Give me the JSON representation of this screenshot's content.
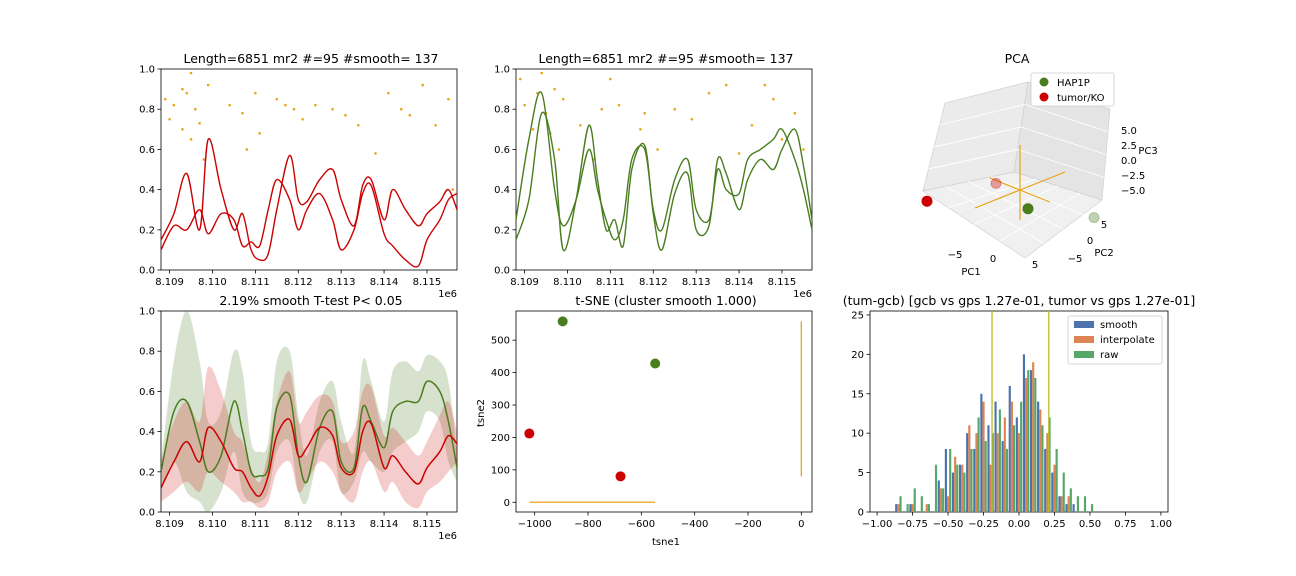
{
  "colors": {
    "red": "#cc0000",
    "green": "#4a7d1f",
    "orange": "#e8a417",
    "blue": "#4c72b0",
    "hist_orange": "#dd8452",
    "hist_green": "#55a868",
    "vline": "#bcbd22"
  },
  "chart_data": [
    {
      "id": "panel1",
      "type": "line",
      "title": "Length=6851 mr2 #=95 #smooth= 137",
      "xlim": [
        8.1088,
        8.1157
      ],
      "ylim": [
        0,
        1
      ],
      "x_offset_label": "1e6",
      "xticks": [
        "8.109",
        "8.110",
        "8.111",
        "8.112",
        "8.113",
        "8.114",
        "8.115"
      ],
      "xtick_values": [
        8.109,
        8.11,
        8.111,
        8.112,
        8.113,
        8.114,
        8.115
      ],
      "yticks": [
        "0.0",
        "0.2",
        "0.4",
        "0.6",
        "0.8",
        "1.0"
      ],
      "series": [
        {
          "color": "red",
          "x": [
            8.1088,
            8.1091,
            8.1094,
            8.1097,
            8.1099,
            8.1102,
            8.1105,
            8.1107,
            8.1109,
            8.1111,
            8.1113,
            8.1115,
            8.1118,
            8.112,
            8.1122,
            8.1125,
            8.1128,
            8.113,
            8.1133,
            8.1135,
            8.1137,
            8.114,
            8.1142,
            8.1145,
            8.1148,
            8.115,
            8.1153,
            8.1155,
            8.1157
          ],
          "y": [
            0.15,
            0.28,
            0.48,
            0.2,
            0.65,
            0.4,
            0.2,
            0.28,
            0.1,
            0.05,
            0.08,
            0.3,
            0.57,
            0.35,
            0.34,
            0.45,
            0.5,
            0.35,
            0.22,
            0.42,
            0.45,
            0.25,
            0.4,
            0.3,
            0.22,
            0.28,
            0.34,
            0.4,
            0.3
          ]
        },
        {
          "color": "red",
          "x": [
            8.1088,
            8.1091,
            8.1094,
            8.1097,
            8.1099,
            8.1102,
            8.1105,
            8.1107,
            8.1109,
            8.1111,
            8.1113,
            8.1115,
            8.1118,
            8.112,
            8.1122,
            8.1125,
            8.1128,
            8.113,
            8.1133,
            8.1135,
            8.1137,
            8.114,
            8.1142,
            8.1145,
            8.1148,
            8.115,
            8.1153,
            8.1155,
            8.1157
          ],
          "y": [
            0.1,
            0.22,
            0.2,
            0.3,
            0.18,
            0.28,
            0.25,
            0.12,
            0.14,
            0.12,
            0.3,
            0.45,
            0.35,
            0.2,
            0.3,
            0.38,
            0.25,
            0.1,
            0.2,
            0.38,
            0.42,
            0.18,
            0.12,
            0.05,
            0.02,
            0.15,
            0.25,
            0.35,
            0.38
          ]
        }
      ],
      "scatter": {
        "color": "orange",
        "x": [
          8.1089,
          8.109,
          8.1091,
          8.1093,
          8.1093,
          8.1094,
          8.1095,
          8.1095,
          8.1096,
          8.1097,
          8.1098,
          8.1099,
          8.1104,
          8.1107,
          8.1108,
          8.111,
          8.1111,
          8.1115,
          8.1117,
          8.1119,
          8.1121,
          8.1124,
          8.1128,
          8.1131,
          8.1134,
          8.1138,
          8.1141,
          8.1144,
          8.1146,
          8.1149,
          8.1152,
          8.1155,
          8.1156
        ],
        "y": [
          0.85,
          0.75,
          0.82,
          0.9,
          0.7,
          0.88,
          0.65,
          0.98,
          0.8,
          0.73,
          0.55,
          0.92,
          0.82,
          0.78,
          0.6,
          0.88,
          0.68,
          0.85,
          0.82,
          0.8,
          0.75,
          0.82,
          0.8,
          0.77,
          0.72,
          0.58,
          0.88,
          0.8,
          0.77,
          0.92,
          0.72,
          0.85,
          0.4
        ]
      }
    },
    {
      "id": "panel2",
      "type": "line",
      "title": "Length=6851 mr2 #=95 #smooth= 137",
      "xlim": [
        8.1088,
        8.1157
      ],
      "ylim": [
        0,
        1
      ],
      "x_offset_label": "1e6",
      "xticks": [
        "8.109",
        "8.110",
        "8.111",
        "8.112",
        "8.113",
        "8.114",
        "8.115"
      ],
      "xtick_values": [
        8.109,
        8.11,
        8.111,
        8.112,
        8.113,
        8.114,
        8.115
      ],
      "yticks": [
        "0.0",
        "0.2",
        "0.4",
        "0.6",
        "0.8",
        "1.0"
      ],
      "series": [
        {
          "color": "green",
          "x": [
            8.1088,
            8.1091,
            8.1094,
            8.1097,
            8.1099,
            8.1102,
            8.1105,
            8.1107,
            8.1109,
            8.1111,
            8.1113,
            8.1115,
            8.1118,
            8.112,
            8.1122,
            8.1125,
            8.1128,
            8.113,
            8.1133,
            8.1135,
            8.1137,
            8.114,
            8.1142,
            8.1145,
            8.1148,
            8.115,
            8.1153,
            8.1155,
            8.1157
          ],
          "y": [
            0.25,
            0.65,
            0.88,
            0.4,
            0.22,
            0.35,
            0.6,
            0.4,
            0.25,
            0.15,
            0.25,
            0.55,
            0.6,
            0.3,
            0.2,
            0.45,
            0.55,
            0.3,
            0.25,
            0.5,
            0.4,
            0.38,
            0.55,
            0.6,
            0.65,
            0.7,
            0.55,
            0.4,
            0.2
          ]
        },
        {
          "color": "green",
          "x": [
            8.1088,
            8.1091,
            8.1094,
            8.1097,
            8.1099,
            8.1102,
            8.1105,
            8.1107,
            8.1109,
            8.1111,
            8.1113,
            8.1115,
            8.1118,
            8.112,
            8.1122,
            8.1125,
            8.1128,
            8.113,
            8.1133,
            8.1135,
            8.1137,
            8.114,
            8.1142,
            8.1145,
            8.1148,
            8.115,
            8.1153,
            8.1155,
            8.1157
          ],
          "y": [
            0.15,
            0.35,
            0.78,
            0.55,
            0.1,
            0.35,
            0.72,
            0.45,
            0.2,
            0.25,
            0.12,
            0.5,
            0.62,
            0.28,
            0.1,
            0.38,
            0.48,
            0.2,
            0.22,
            0.55,
            0.48,
            0.3,
            0.45,
            0.55,
            0.5,
            0.6,
            0.7,
            0.52,
            0.25
          ]
        }
      ],
      "scatter": {
        "color": "orange",
        "x": [
          8.1089,
          8.109,
          8.1092,
          8.1093,
          8.1094,
          8.1095,
          8.1096,
          8.1097,
          8.1098,
          8.1099,
          8.1103,
          8.1106,
          8.1108,
          8.111,
          8.1112,
          8.1117,
          8.1118,
          8.1121,
          8.1125,
          8.1129,
          8.1133,
          8.1137,
          8.114,
          8.1143,
          8.1146,
          8.1148,
          8.115,
          8.1153,
          8.1155
        ],
        "y": [
          0.95,
          0.82,
          0.7,
          0.88,
          0.98,
          0.78,
          0.68,
          0.9,
          0.6,
          0.85,
          0.72,
          0.55,
          0.8,
          0.95,
          0.82,
          0.7,
          0.78,
          0.6,
          0.8,
          0.75,
          0.88,
          0.92,
          0.58,
          0.72,
          0.92,
          0.85,
          0.65,
          0.78,
          0.6
        ]
      }
    },
    {
      "id": "panel3",
      "type": "scatter",
      "title": "PCA",
      "xlabel": "PC1",
      "ylabel": "PC2",
      "zlabel": "PC3",
      "xticks": [
        "−5",
        "0",
        "5"
      ],
      "yticks": [
        "−5",
        "0",
        "5"
      ],
      "zticks": [
        "5.0",
        "2.5",
        "0.0",
        "−2.5",
        "−5.0"
      ],
      "legend": [
        {
          "label": "HAP1P",
          "color": "green"
        },
        {
          "label": "tumor/KO",
          "color": "red"
        }
      ],
      "points": [
        {
          "group": "tumor/KO",
          "pc1": -7,
          "pc2": -6,
          "pc3": -4
        },
        {
          "group": "tumor/KO",
          "pc1": -6,
          "pc2": 6,
          "pc3": 6
        },
        {
          "group": "HAP1P",
          "pc1": 2,
          "pc2": -2,
          "pc3": -5
        },
        {
          "group": "HAP1P",
          "pc1": 6,
          "pc2": 4,
          "pc3": -4
        }
      ]
    },
    {
      "id": "panel4",
      "type": "area",
      "title": "2.19% smooth T-test P< 0.05",
      "xlim": [
        8.1088,
        8.1157
      ],
      "ylim": [
        0,
        1
      ],
      "x_offset_label": "1e6",
      "xticks": [
        "8.109",
        "8.110",
        "8.111",
        "8.112",
        "8.113",
        "8.114",
        "8.115"
      ],
      "xtick_values": [
        8.109,
        8.11,
        8.111,
        8.112,
        8.113,
        8.114,
        8.115
      ],
      "yticks": [
        "0.0",
        "0.2",
        "0.4",
        "0.6",
        "0.8",
        "1.0"
      ],
      "x": [
        8.1088,
        8.1091,
        8.1094,
        8.1097,
        8.1099,
        8.1102,
        8.1105,
        8.1107,
        8.1109,
        8.1111,
        8.1113,
        8.1115,
        8.1118,
        8.112,
        8.1122,
        8.1125,
        8.1128,
        8.113,
        8.1133,
        8.1135,
        8.1137,
        8.114,
        8.1142,
        8.1145,
        8.1148,
        8.115,
        8.1153,
        8.1155,
        8.1157
      ],
      "series": [
        {
          "color": "green",
          "mean": [
            0.2,
            0.5,
            0.55,
            0.35,
            0.2,
            0.28,
            0.55,
            0.4,
            0.2,
            0.18,
            0.22,
            0.52,
            0.58,
            0.28,
            0.15,
            0.42,
            0.5,
            0.25,
            0.22,
            0.52,
            0.45,
            0.32,
            0.5,
            0.55,
            0.55,
            0.65,
            0.6,
            0.45,
            0.22
          ],
          "lower": [
            0.1,
            0.25,
            0.1,
            0.05,
            0.0,
            0.1,
            0.3,
            0.1,
            0.05,
            0.05,
            0.1,
            0.3,
            0.35,
            0.1,
            0.05,
            0.3,
            0.35,
            0.1,
            0.15,
            0.3,
            0.25,
            0.2,
            0.3,
            0.35,
            0.4,
            0.5,
            0.45,
            0.25,
            0.15
          ],
          "upper": [
            0.25,
            0.75,
            1.0,
            0.75,
            0.45,
            0.5,
            0.8,
            0.7,
            0.35,
            0.3,
            0.35,
            0.75,
            0.8,
            0.48,
            0.28,
            0.55,
            0.65,
            0.45,
            0.3,
            0.75,
            0.65,
            0.45,
            0.7,
            0.75,
            0.7,
            0.78,
            0.75,
            0.65,
            0.3
          ]
        },
        {
          "color": "red",
          "mean": [
            0.12,
            0.25,
            0.35,
            0.25,
            0.42,
            0.35,
            0.22,
            0.2,
            0.12,
            0.08,
            0.18,
            0.38,
            0.46,
            0.28,
            0.32,
            0.42,
            0.38,
            0.22,
            0.2,
            0.4,
            0.44,
            0.22,
            0.28,
            0.2,
            0.14,
            0.22,
            0.3,
            0.38,
            0.34
          ],
          "lower": [
            0.05,
            0.1,
            0.15,
            0.1,
            0.2,
            0.15,
            0.1,
            0.05,
            0.05,
            0.02,
            0.05,
            0.2,
            0.25,
            0.1,
            0.15,
            0.25,
            0.2,
            0.1,
            0.05,
            0.2,
            0.25,
            0.1,
            0.15,
            0.05,
            0.02,
            0.1,
            0.15,
            0.2,
            0.25
          ],
          "upper": [
            0.25,
            0.45,
            0.55,
            0.45,
            0.72,
            0.6,
            0.4,
            0.35,
            0.22,
            0.15,
            0.3,
            0.55,
            0.7,
            0.45,
            0.5,
            0.58,
            0.55,
            0.35,
            0.4,
            0.6,
            0.62,
            0.38,
            0.42,
            0.35,
            0.28,
            0.35,
            0.48,
            0.55,
            0.4
          ]
        }
      ]
    },
    {
      "id": "panel5",
      "type": "scatter",
      "title": "t-SNE (cluster smooth 1.000)",
      "xlabel": "tsne1",
      "ylabel": "tsne2",
      "xlim": [
        -1070,
        40
      ],
      "ylim": [
        -30,
        590
      ],
      "xticks": [
        -1000,
        -800,
        -600,
        -400,
        -200,
        0
      ],
      "yticks": [
        0,
        100,
        200,
        300,
        400,
        500
      ],
      "xtick_labels": [
        "−1000",
        "−800",
        "−600",
        "−400",
        "−200",
        "0"
      ],
      "ytick_labels": [
        "0",
        "100",
        "200",
        "300",
        "400",
        "500"
      ],
      "points": [
        {
          "x": -895,
          "y": 558,
          "color": "green"
        },
        {
          "x": -548,
          "y": 428,
          "color": "green"
        },
        {
          "x": -1020,
          "y": 212,
          "color": "red"
        },
        {
          "x": -678,
          "y": 80,
          "color": "red"
        }
      ],
      "lines": [
        {
          "x": [
            -1020,
            -548
          ],
          "y": [
            0,
            0
          ],
          "color": "orange"
        },
        {
          "x": [
            0,
            0
          ],
          "y": [
            80,
            558
          ],
          "color": "orange"
        }
      ]
    },
    {
      "id": "panel6",
      "type": "bar",
      "title": "(tum-gcb) [gcb vs gps 1.27e-01, tumor vs gps 1.27e-01]",
      "xlim": [
        -1.05,
        1.05
      ],
      "ylim": [
        0,
        25.5
      ],
      "xticks": [
        -1.0,
        -0.75,
        -0.5,
        -0.25,
        0.0,
        0.25,
        0.5,
        0.75,
        1.0
      ],
      "xtick_labels": [
        "−1.00",
        "−0.75",
        "−0.50",
        "−0.25",
        "0.00",
        "0.25",
        "0.50",
        "0.75",
        "1.00"
      ],
      "yticks": [
        0,
        5,
        10,
        15,
        20,
        25
      ],
      "bin_centers": [
        -0.95,
        -0.9,
        -0.85,
        -0.8,
        -0.75,
        -0.7,
        -0.65,
        -0.6,
        -0.55,
        -0.5,
        -0.45,
        -0.4,
        -0.35,
        -0.3,
        -0.25,
        -0.2,
        -0.15,
        -0.1,
        -0.05,
        0.0,
        0.05,
        0.1,
        0.15,
        0.2,
        0.25,
        0.3,
        0.35,
        0.4,
        0.45,
        0.5,
        0.55,
        0.6,
        0.65,
        0.7,
        0.75,
        0.8,
        0.85,
        0.9,
        0.95
      ],
      "series": [
        {
          "name": "smooth",
          "color": "blue",
          "values": [
            0,
            0,
            1,
            0,
            1,
            0,
            0,
            0,
            4,
            8,
            5,
            6,
            10,
            8,
            15,
            11,
            14,
            9,
            16,
            12,
            20,
            18,
            14,
            8,
            5,
            2,
            1,
            1,
            0,
            0,
            0,
            0,
            0,
            0,
            0,
            0,
            0,
            0,
            0
          ]
        },
        {
          "name": "interpolate",
          "color": "hist_orange",
          "values": [
            0,
            0,
            1,
            0,
            1,
            0,
            1,
            0,
            3,
            2,
            7,
            6,
            11,
            10,
            14,
            6,
            10,
            12,
            14,
            10,
            17,
            19,
            13,
            10,
            6,
            2,
            2,
            0,
            0,
            0,
            0,
            0,
            0,
            0,
            0,
            0,
            0,
            0,
            0
          ]
        },
        {
          "name": "raw",
          "color": "hist_green",
          "values": [
            0,
            0,
            2,
            1,
            3,
            2,
            1,
            6,
            3,
            8,
            6,
            5,
            8,
            12,
            9,
            10,
            13,
            8,
            11,
            14,
            18,
            17,
            11,
            12,
            8,
            5,
            3,
            2,
            2,
            1,
            0,
            0,
            0,
            0,
            0,
            0,
            0,
            0,
            0
          ]
        }
      ],
      "vlines": [
        -0.19,
        0.21
      ],
      "legend": [
        "smooth",
        "interpolate",
        "raw"
      ]
    }
  ]
}
